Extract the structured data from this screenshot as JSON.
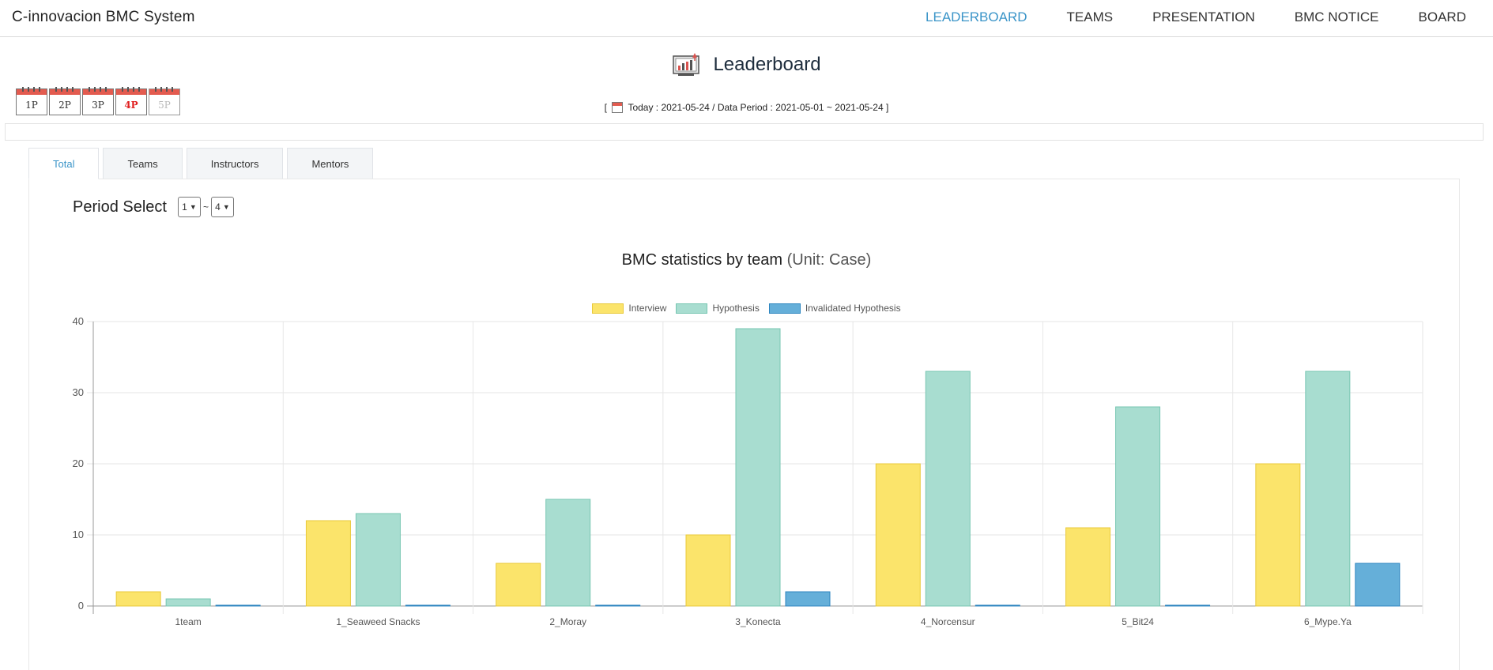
{
  "app": {
    "title": "C-innovacion BMC System"
  },
  "nav": {
    "items": [
      {
        "label": "LEADERBOARD",
        "active": true
      },
      {
        "label": "TEAMS",
        "active": false
      },
      {
        "label": "PRESENTATION",
        "active": false
      },
      {
        "label": "BMC NOTICE",
        "active": false
      },
      {
        "label": "BOARD",
        "active": false
      }
    ]
  },
  "header": {
    "title": "Leaderboard",
    "icon": "chart-presentation-icon"
  },
  "periods": [
    {
      "label": "1P",
      "state": "normal"
    },
    {
      "label": "2P",
      "state": "normal"
    },
    {
      "label": "3P",
      "state": "normal"
    },
    {
      "label": "4P",
      "state": "current"
    },
    {
      "label": "5P",
      "state": "disabled"
    }
  ],
  "date_info": {
    "open": "[",
    "text": "Today : 2021-05-24 / Data Period : 2021-05-01 ~ 2021-05-24",
    "close": "]"
  },
  "tabs": [
    {
      "label": "Total",
      "active": true
    },
    {
      "label": "Teams",
      "active": false
    },
    {
      "label": "Instructors",
      "active": false
    },
    {
      "label": "Mentors",
      "active": false
    }
  ],
  "period_select": {
    "label": "Period Select",
    "from": "1",
    "separator": "~",
    "to": "4"
  },
  "chart_data": {
    "type": "bar",
    "title": "BMC statistics by team",
    "subtitle": "(Unit: Case)",
    "categories": [
      "1team",
      "1_Seaweed Snacks",
      "2_Moray",
      "3_Konecta",
      "4_Norcensur",
      "5_Bit24",
      "6_Mype.Ya"
    ],
    "series": [
      {
        "name": "Interview",
        "values": [
          2,
          12,
          6,
          10,
          20,
          11,
          20
        ],
        "color": "#fbe46b",
        "border": "#e8c93a"
      },
      {
        "name": "Hypothesis",
        "values": [
          1,
          13,
          15,
          39,
          33,
          28,
          33
        ],
        "color": "#a8ddd0",
        "border": "#77c6b2"
      },
      {
        "name": "Invalidated Hypothesis",
        "values": [
          0,
          0,
          0,
          2,
          0,
          0,
          6
        ],
        "color": "#65afd9",
        "border": "#2e86c0"
      }
    ],
    "ylim": [
      0,
      40
    ],
    "yticks": [
      0,
      10,
      20,
      30,
      40
    ],
    "grid": true,
    "legend": "top-center"
  }
}
